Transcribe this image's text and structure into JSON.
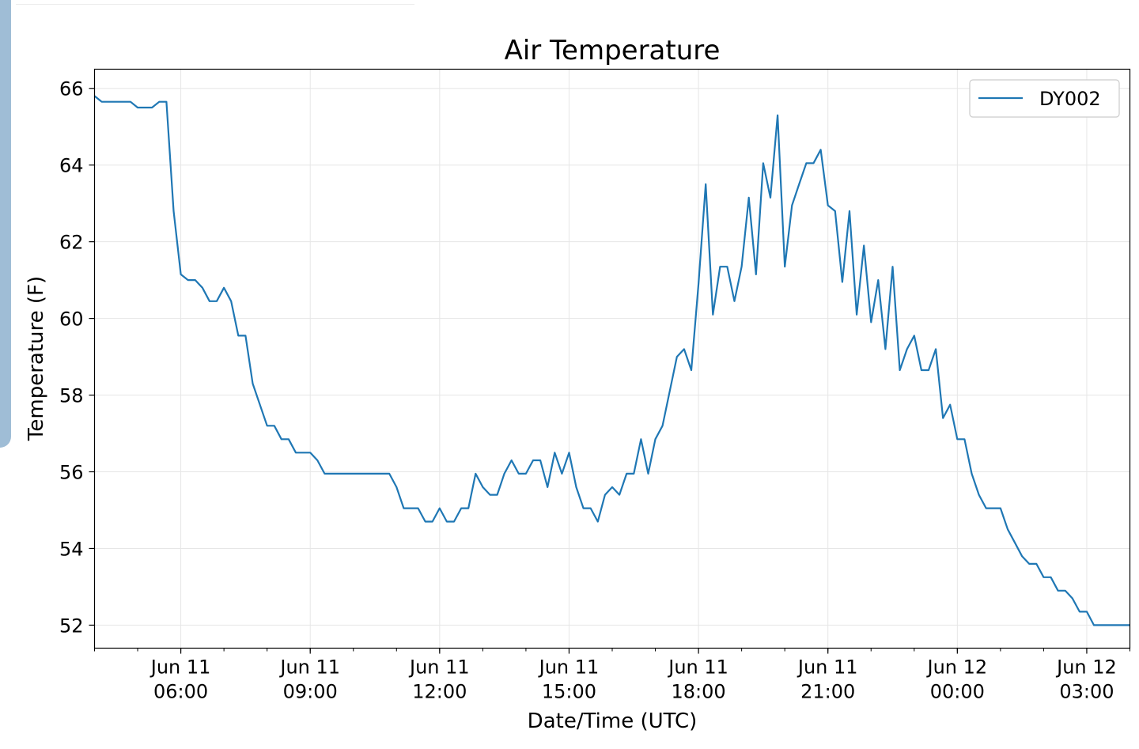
{
  "chart_data": {
    "type": "line",
    "title": "Air Temperature",
    "xlabel": "Date/Time (UTC)",
    "ylabel": "Temperature (F)",
    "x_unit": "datetime",
    "xlim": [
      "2019-06-11T04:00",
      "2019-06-12T04:00"
    ],
    "ylim": [
      51.4,
      66.5
    ],
    "yticks": [
      52,
      54,
      56,
      58,
      60,
      62,
      64,
      66
    ],
    "xticks": [
      {
        "t": "2019-06-11T06:00",
        "l1": "Jun 11",
        "l2": "06:00"
      },
      {
        "t": "2019-06-11T09:00",
        "l1": "Jun 11",
        "l2": "09:00"
      },
      {
        "t": "2019-06-11T12:00",
        "l1": "Jun 11",
        "l2": "12:00"
      },
      {
        "t": "2019-06-11T15:00",
        "l1": "Jun 11",
        "l2": "15:00"
      },
      {
        "t": "2019-06-11T18:00",
        "l1": "Jun 11",
        "l2": "18:00"
      },
      {
        "t": "2019-06-11T21:00",
        "l1": "Jun 11",
        "l2": "21:00"
      },
      {
        "t": "2019-06-12T00:00",
        "l1": "Jun 12",
        "l2": "00:00"
      },
      {
        "t": "2019-06-12T03:00",
        "l1": "Jun 12",
        "l2": "03:00"
      }
    ],
    "grid": true,
    "legend_position": "top-right",
    "series": [
      {
        "name": "DY002",
        "color": "#1f77b4",
        "x": [
          "2019-06-11T04:00",
          "2019-06-11T04:10",
          "2019-06-11T04:20",
          "2019-06-11T04:30",
          "2019-06-11T04:40",
          "2019-06-11T04:50",
          "2019-06-11T05:00",
          "2019-06-11T05:10",
          "2019-06-11T05:20",
          "2019-06-11T05:30",
          "2019-06-11T05:40",
          "2019-06-11T05:50",
          "2019-06-11T06:00",
          "2019-06-11T06:10",
          "2019-06-11T06:20",
          "2019-06-11T06:30",
          "2019-06-11T06:40",
          "2019-06-11T06:50",
          "2019-06-11T07:00",
          "2019-06-11T07:10",
          "2019-06-11T07:20",
          "2019-06-11T07:30",
          "2019-06-11T07:40",
          "2019-06-11T07:50",
          "2019-06-11T08:00",
          "2019-06-11T08:10",
          "2019-06-11T08:20",
          "2019-06-11T08:30",
          "2019-06-11T08:40",
          "2019-06-11T08:50",
          "2019-06-11T09:00",
          "2019-06-11T09:10",
          "2019-06-11T09:20",
          "2019-06-11T09:30",
          "2019-06-11T09:40",
          "2019-06-11T09:50",
          "2019-06-11T10:00",
          "2019-06-11T10:10",
          "2019-06-11T10:20",
          "2019-06-11T10:30",
          "2019-06-11T10:40",
          "2019-06-11T10:50",
          "2019-06-11T11:00",
          "2019-06-11T11:10",
          "2019-06-11T11:20",
          "2019-06-11T11:30",
          "2019-06-11T11:40",
          "2019-06-11T11:50",
          "2019-06-11T12:00",
          "2019-06-11T12:10",
          "2019-06-11T12:20",
          "2019-06-11T12:30",
          "2019-06-11T12:40",
          "2019-06-11T12:50",
          "2019-06-11T13:00",
          "2019-06-11T13:10",
          "2019-06-11T13:20",
          "2019-06-11T13:30",
          "2019-06-11T13:40",
          "2019-06-11T13:50",
          "2019-06-11T14:00",
          "2019-06-11T14:10",
          "2019-06-11T14:20",
          "2019-06-11T14:30",
          "2019-06-11T14:40",
          "2019-06-11T14:50",
          "2019-06-11T15:00",
          "2019-06-11T15:10",
          "2019-06-11T15:20",
          "2019-06-11T15:30",
          "2019-06-11T15:40",
          "2019-06-11T15:50",
          "2019-06-11T16:00",
          "2019-06-11T16:10",
          "2019-06-11T16:20",
          "2019-06-11T16:30",
          "2019-06-11T16:40",
          "2019-06-11T16:50",
          "2019-06-11T17:00",
          "2019-06-11T17:10",
          "2019-06-11T17:20",
          "2019-06-11T17:30",
          "2019-06-11T17:40",
          "2019-06-11T17:50",
          "2019-06-11T18:00",
          "2019-06-11T18:10",
          "2019-06-11T18:20",
          "2019-06-11T18:30",
          "2019-06-11T18:40",
          "2019-06-11T18:50",
          "2019-06-11T19:00",
          "2019-06-11T19:10",
          "2019-06-11T19:20",
          "2019-06-11T19:30",
          "2019-06-11T19:40",
          "2019-06-11T19:50",
          "2019-06-11T20:00",
          "2019-06-11T20:10",
          "2019-06-11T20:20",
          "2019-06-11T20:30",
          "2019-06-11T20:40",
          "2019-06-11T20:50",
          "2019-06-11T21:00",
          "2019-06-11T21:10",
          "2019-06-11T21:20",
          "2019-06-11T21:30",
          "2019-06-11T21:40",
          "2019-06-11T21:50",
          "2019-06-11T22:00",
          "2019-06-11T22:10",
          "2019-06-11T22:20",
          "2019-06-11T22:30",
          "2019-06-11T22:40",
          "2019-06-11T22:50",
          "2019-06-11T23:00",
          "2019-06-11T23:10",
          "2019-06-11T23:20",
          "2019-06-11T23:30",
          "2019-06-11T23:40",
          "2019-06-11T23:50",
          "2019-06-12T00:00",
          "2019-06-12T00:10",
          "2019-06-12T00:20",
          "2019-06-12T00:30",
          "2019-06-12T00:40",
          "2019-06-12T00:50",
          "2019-06-12T01:00",
          "2019-06-12T01:10",
          "2019-06-12T01:20",
          "2019-06-12T01:30",
          "2019-06-12T01:40",
          "2019-06-12T01:50",
          "2019-06-12T02:00",
          "2019-06-12T02:10",
          "2019-06-12T02:20",
          "2019-06-12T02:30",
          "2019-06-12T02:40",
          "2019-06-12T02:50",
          "2019-06-12T03:00",
          "2019-06-12T03:10",
          "2019-06-12T03:20",
          "2019-06-12T03:30",
          "2019-06-12T03:40",
          "2019-06-12T03:50",
          "2019-06-12T04:00"
        ],
        "y": [
          65.8,
          65.65,
          65.65,
          65.65,
          65.65,
          65.65,
          65.5,
          65.5,
          65.5,
          65.65,
          65.65,
          62.8,
          61.15,
          61.0,
          61.0,
          60.8,
          60.45,
          60.45,
          60.8,
          60.45,
          59.55,
          59.55,
          58.3,
          57.75,
          57.2,
          57.2,
          56.85,
          56.85,
          56.5,
          56.5,
          56.5,
          56.3,
          55.95,
          55.95,
          55.95,
          55.95,
          55.95,
          55.95,
          55.95,
          55.95,
          55.95,
          55.95,
          55.6,
          55.05,
          55.05,
          55.05,
          54.7,
          54.7,
          55.05,
          54.7,
          54.7,
          55.05,
          55.05,
          55.95,
          55.6,
          55.4,
          55.4,
          55.95,
          56.3,
          55.95,
          55.95,
          56.3,
          56.3,
          55.6,
          56.5,
          55.95,
          56.5,
          55.6,
          55.05,
          55.05,
          54.7,
          55.4,
          55.6,
          55.4,
          55.95,
          55.95,
          56.85,
          55.95,
          56.85,
          57.2,
          58.1,
          59.0,
          59.2,
          58.65,
          60.9,
          63.5,
          60.1,
          61.35,
          61.35,
          60.45,
          61.35,
          63.15,
          61.15,
          64.05,
          63.15,
          65.3,
          61.35,
          62.95,
          63.5,
          64.05,
          64.05,
          64.4,
          62.95,
          62.8,
          60.95,
          62.8,
          60.1,
          61.9,
          59.9,
          61.0,
          59.2,
          61.35,
          58.65,
          59.2,
          59.55,
          58.65,
          58.65,
          59.2,
          57.4,
          57.75,
          56.85,
          56.85,
          55.95,
          55.4,
          55.05,
          55.05,
          55.05,
          54.5,
          54.15,
          53.8,
          53.6,
          53.6,
          53.25,
          53.25,
          52.9,
          52.9,
          52.7,
          52.35,
          52.35,
          52.0,
          52.0,
          52.0,
          52.0,
          52.0,
          52.0
        ]
      }
    ]
  }
}
